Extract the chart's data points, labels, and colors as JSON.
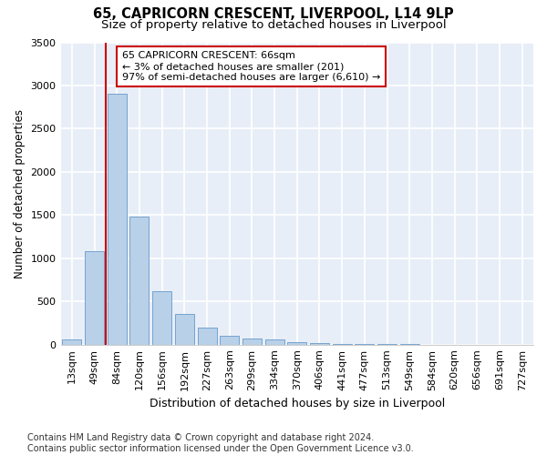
{
  "title1": "65, CAPRICORN CRESCENT, LIVERPOOL, L14 9LP",
  "title2": "Size of property relative to detached houses in Liverpool",
  "xlabel": "Distribution of detached houses by size in Liverpool",
  "ylabel": "Number of detached properties",
  "categories": [
    "13sqm",
    "49sqm",
    "84sqm",
    "120sqm",
    "156sqm",
    "192sqm",
    "227sqm",
    "263sqm",
    "299sqm",
    "334sqm",
    "370sqm",
    "406sqm",
    "441sqm",
    "477sqm",
    "513sqm",
    "549sqm",
    "584sqm",
    "620sqm",
    "656sqm",
    "691sqm",
    "727sqm"
  ],
  "values": [
    55,
    1080,
    2900,
    1480,
    620,
    350,
    200,
    105,
    75,
    55,
    30,
    15,
    10,
    5,
    3,
    2,
    1,
    1,
    0,
    0,
    0
  ],
  "bar_color": "#b8d0e8",
  "bar_edge_color": "#6699cc",
  "vline_color": "#cc0000",
  "vline_x_index": 1.5,
  "annotation_text": "65 CAPRICORN CRESCENT: 66sqm\n← 3% of detached houses are smaller (201)\n97% of semi-detached houses are larger (6,610) →",
  "annotation_box_facecolor": "#ffffff",
  "annotation_box_edgecolor": "#cc0000",
  "footnote_line1": "Contains HM Land Registry data © Crown copyright and database right 2024.",
  "footnote_line2": "Contains public sector information licensed under the Open Government Licence v3.0.",
  "ylim": [
    0,
    3500
  ],
  "yticks": [
    0,
    500,
    1000,
    1500,
    2000,
    2500,
    3000,
    3500
  ],
  "background_color": "#e8eef8",
  "grid_color": "#ffffff",
  "title1_fontsize": 10.5,
  "title2_fontsize": 9.5,
  "xlabel_fontsize": 9,
  "ylabel_fontsize": 8.5,
  "tick_fontsize": 8,
  "annotation_fontsize": 8,
  "footnote_fontsize": 7
}
